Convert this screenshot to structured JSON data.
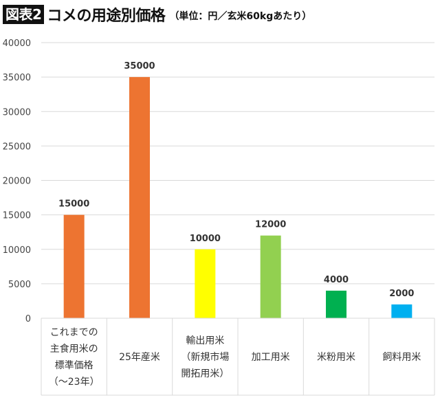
{
  "header": {
    "figure_badge": "図表2",
    "title": "コメの用途別価格",
    "subtitle": "（単位：円／玄米60kgあたり）"
  },
  "chart_data": {
    "type": "bar",
    "categories": [
      [
        "これまでの",
        "主食用米の",
        "標準価格",
        "（〜23年）"
      ],
      [
        "25年産米"
      ],
      [
        "輸出用米",
        "（新規市場",
        "開拓用米）"
      ],
      [
        "加工用米"
      ],
      [
        "米粉用米"
      ],
      [
        "飼料用米"
      ]
    ],
    "values": [
      15000,
      35000,
      10000,
      12000,
      4000,
      2000
    ],
    "value_labels": [
      "15000",
      "35000",
      "10000",
      "12000",
      "4000",
      "2000"
    ],
    "colors": [
      "#ED7431",
      "#ED7431",
      "#FFFF00",
      "#92D050",
      "#00B050",
      "#00B0F0"
    ],
    "ylim": [
      0,
      40000
    ],
    "yticks": [
      "0",
      "5000",
      "10000",
      "15000",
      "20000",
      "25000",
      "30000",
      "35000",
      "40000"
    ],
    "grid": true,
    "legend": "none"
  }
}
